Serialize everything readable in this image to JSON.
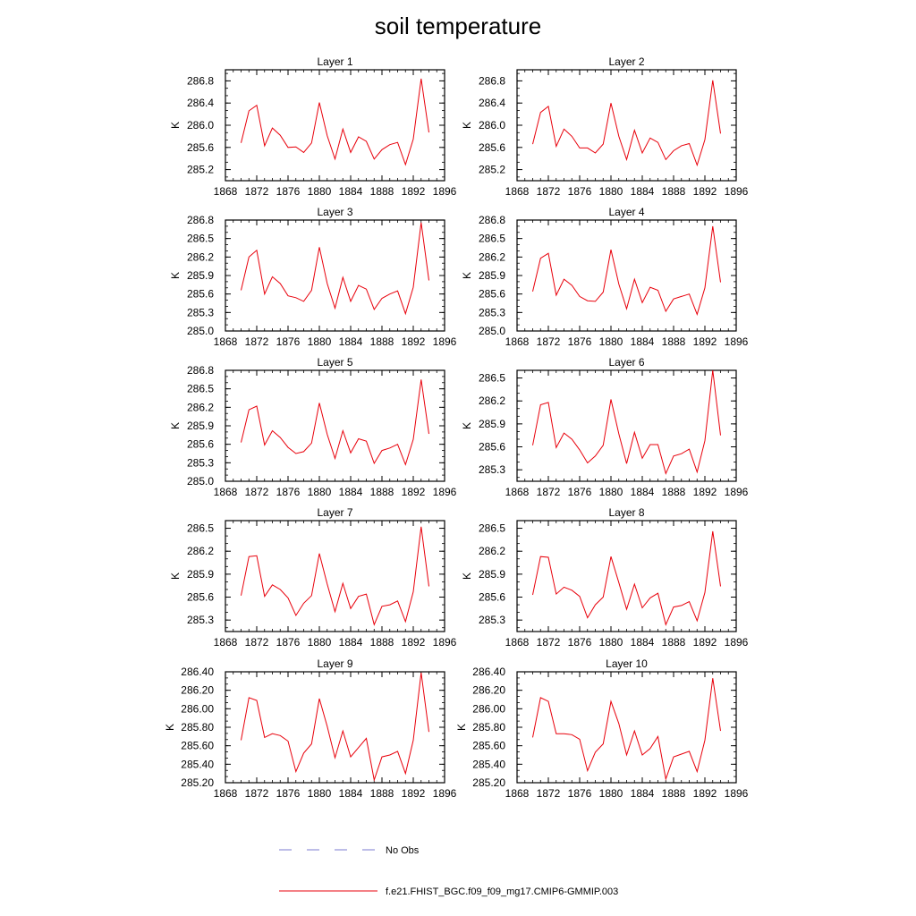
{
  "figure": {
    "title": "soil temperature"
  },
  "legend": [
    {
      "label": "No Obs",
      "color": "#7b7bd1",
      "style": "dashed"
    },
    {
      "label": "f.e21.FHIST_BGC.f09_f09_mg17.CMIP6-GMMIP.003",
      "color": "#e8000b",
      "style": "solid"
    }
  ],
  "chart_data": [
    {
      "type": "line",
      "title": "Layer 1",
      "ylabel": "K",
      "xlim": [
        1868,
        1896
      ],
      "ylim": [
        285.0,
        287.0
      ],
      "xticks": [
        "1868",
        "1872",
        "1876",
        "1880",
        "1884",
        "1888",
        "1892",
        "1896"
      ],
      "yticks": [
        "285.2",
        "285.6",
        "286.0",
        "286.4",
        "286.8"
      ],
      "series": [
        {
          "color": "#e8000b",
          "x": [
            1870,
            1871,
            1872,
            1873,
            1874,
            1875,
            1876,
            1877,
            1878,
            1879,
            1880,
            1881,
            1882,
            1883,
            1884,
            1885,
            1886,
            1887,
            1888,
            1889,
            1890,
            1891,
            1892,
            1893,
            1894
          ],
          "y": [
            285.68,
            286.26,
            286.36,
            285.63,
            285.95,
            285.82,
            285.6,
            285.61,
            285.51,
            285.68,
            286.41,
            285.81,
            285.39,
            285.93,
            285.51,
            285.79,
            285.71,
            285.39,
            285.56,
            285.65,
            285.69,
            285.29,
            285.75,
            286.84,
            285.87
          ]
        }
      ]
    },
    {
      "type": "line",
      "title": "Layer 2",
      "ylabel": "K",
      "xlim": [
        1868,
        1896
      ],
      "ylim": [
        285.0,
        287.0
      ],
      "xticks": [
        "1868",
        "1872",
        "1876",
        "1880",
        "1884",
        "1888",
        "1892",
        "1896"
      ],
      "yticks": [
        "285.2",
        "285.6",
        "286.0",
        "286.4",
        "286.8"
      ],
      "series": [
        {
          "color": "#e8000b",
          "x": [
            1870,
            1871,
            1872,
            1873,
            1874,
            1875,
            1876,
            1877,
            1878,
            1879,
            1880,
            1881,
            1882,
            1883,
            1884,
            1885,
            1886,
            1887,
            1888,
            1889,
            1890,
            1891,
            1892,
            1893,
            1894
          ],
          "y": [
            285.66,
            286.23,
            286.34,
            285.62,
            285.93,
            285.8,
            285.59,
            285.59,
            285.5,
            285.66,
            286.4,
            285.8,
            285.38,
            285.91,
            285.5,
            285.77,
            285.69,
            285.38,
            285.54,
            285.63,
            285.67,
            285.28,
            285.74,
            286.81,
            285.85
          ]
        }
      ]
    },
    {
      "type": "line",
      "title": "Layer 3",
      "ylabel": "K",
      "xlim": [
        1868,
        1896
      ],
      "ylim": [
        285.0,
        286.8
      ],
      "xticks": [
        "1868",
        "1872",
        "1876",
        "1880",
        "1884",
        "1888",
        "1892",
        "1896"
      ],
      "yticks": [
        "285.0",
        "285.3",
        "285.6",
        "285.9",
        "286.2",
        "286.5",
        "286.8"
      ],
      "series": [
        {
          "color": "#e8000b",
          "x": [
            1870,
            1871,
            1872,
            1873,
            1874,
            1875,
            1876,
            1877,
            1878,
            1879,
            1880,
            1881,
            1882,
            1883,
            1884,
            1885,
            1886,
            1887,
            1888,
            1889,
            1890,
            1891,
            1892,
            1893,
            1894
          ],
          "y": [
            285.66,
            286.2,
            286.31,
            285.6,
            285.88,
            285.77,
            285.57,
            285.54,
            285.48,
            285.66,
            286.36,
            285.77,
            285.37,
            285.87,
            285.48,
            285.74,
            285.68,
            285.35,
            285.53,
            285.6,
            285.65,
            285.28,
            285.71,
            286.76,
            285.82
          ]
        }
      ]
    },
    {
      "type": "line",
      "title": "Layer 4",
      "ylabel": "K",
      "xlim": [
        1868,
        1896
      ],
      "ylim": [
        285.0,
        286.8
      ],
      "xticks": [
        "1868",
        "1872",
        "1876",
        "1880",
        "1884",
        "1888",
        "1892",
        "1896"
      ],
      "yticks": [
        "285.0",
        "285.3",
        "285.6",
        "285.9",
        "286.2",
        "286.5",
        "286.8"
      ],
      "series": [
        {
          "color": "#e8000b",
          "x": [
            1870,
            1871,
            1872,
            1873,
            1874,
            1875,
            1876,
            1877,
            1878,
            1879,
            1880,
            1881,
            1882,
            1883,
            1884,
            1885,
            1886,
            1887,
            1888,
            1889,
            1890,
            1891,
            1892,
            1893,
            1894
          ],
          "y": [
            285.64,
            286.18,
            286.26,
            285.58,
            285.84,
            285.74,
            285.56,
            285.49,
            285.48,
            285.63,
            286.32,
            285.76,
            285.36,
            285.84,
            285.46,
            285.71,
            285.66,
            285.32,
            285.52,
            285.56,
            285.6,
            285.27,
            285.7,
            286.7,
            285.79
          ]
        }
      ]
    },
    {
      "type": "line",
      "title": "Layer 5",
      "ylabel": "K",
      "xlim": [
        1868,
        1896
      ],
      "ylim": [
        285.0,
        286.8
      ],
      "xticks": [
        "1868",
        "1872",
        "1876",
        "1880",
        "1884",
        "1888",
        "1892",
        "1896"
      ],
      "yticks": [
        "285.0",
        "285.3",
        "285.6",
        "285.9",
        "286.2",
        "286.5",
        "286.8"
      ],
      "series": [
        {
          "color": "#e8000b",
          "x": [
            1870,
            1871,
            1872,
            1873,
            1874,
            1875,
            1876,
            1877,
            1878,
            1879,
            1880,
            1881,
            1882,
            1883,
            1884,
            1885,
            1886,
            1887,
            1888,
            1889,
            1890,
            1891,
            1892,
            1893,
            1894
          ],
          "y": [
            285.63,
            286.16,
            286.22,
            285.59,
            285.82,
            285.71,
            285.55,
            285.45,
            285.48,
            285.62,
            286.27,
            285.76,
            285.37,
            285.82,
            285.46,
            285.69,
            285.65,
            285.29,
            285.5,
            285.54,
            285.6,
            285.27,
            285.68,
            286.65,
            285.77
          ]
        }
      ]
    },
    {
      "type": "line",
      "title": "Layer 6",
      "ylabel": "K",
      "xlim": [
        1868,
        1896
      ],
      "ylim": [
        285.15,
        286.6
      ],
      "xticks": [
        "1868",
        "1872",
        "1876",
        "1880",
        "1884",
        "1888",
        "1892",
        "1896"
      ],
      "yticks": [
        "285.3",
        "285.6",
        "285.9",
        "286.2",
        "286.5"
      ],
      "series": [
        {
          "color": "#e8000b",
          "x": [
            1870,
            1871,
            1872,
            1873,
            1874,
            1875,
            1876,
            1877,
            1878,
            1879,
            1880,
            1881,
            1882,
            1883,
            1884,
            1885,
            1886,
            1887,
            1888,
            1889,
            1890,
            1891,
            1892,
            1893,
            1894
          ],
          "y": [
            285.62,
            286.15,
            286.18,
            285.59,
            285.78,
            285.7,
            285.56,
            285.39,
            285.48,
            285.62,
            286.22,
            285.77,
            285.38,
            285.79,
            285.45,
            285.63,
            285.63,
            285.25,
            285.48,
            285.51,
            285.57,
            285.27,
            285.68,
            286.6,
            285.75
          ]
        }
      ]
    },
    {
      "type": "line",
      "title": "Layer 7",
      "ylabel": "K",
      "xlim": [
        1868,
        1896
      ],
      "ylim": [
        285.15,
        286.6
      ],
      "xticks": [
        "1868",
        "1872",
        "1876",
        "1880",
        "1884",
        "1888",
        "1892",
        "1896"
      ],
      "yticks": [
        "285.3",
        "285.6",
        "285.9",
        "286.2",
        "286.5"
      ],
      "series": [
        {
          "color": "#e8000b",
          "x": [
            1870,
            1871,
            1872,
            1873,
            1874,
            1875,
            1876,
            1877,
            1878,
            1879,
            1880,
            1881,
            1882,
            1883,
            1884,
            1885,
            1886,
            1887,
            1888,
            1889,
            1890,
            1891,
            1892,
            1893,
            1894
          ],
          "y": [
            285.62,
            286.13,
            286.14,
            285.61,
            285.76,
            285.7,
            285.59,
            285.36,
            285.52,
            285.62,
            286.17,
            285.77,
            285.41,
            285.78,
            285.45,
            285.61,
            285.64,
            285.24,
            285.48,
            285.5,
            285.55,
            285.28,
            285.67,
            286.52,
            285.74
          ]
        }
      ]
    },
    {
      "type": "line",
      "title": "Layer 8",
      "ylabel": "K",
      "xlim": [
        1868,
        1896
      ],
      "ylim": [
        285.15,
        286.6
      ],
      "xticks": [
        "1868",
        "1872",
        "1876",
        "1880",
        "1884",
        "1888",
        "1892",
        "1896"
      ],
      "yticks": [
        "285.3",
        "285.6",
        "285.9",
        "286.2",
        "286.5"
      ],
      "series": [
        {
          "color": "#e8000b",
          "x": [
            1870,
            1871,
            1872,
            1873,
            1874,
            1875,
            1876,
            1877,
            1878,
            1879,
            1880,
            1881,
            1882,
            1883,
            1884,
            1885,
            1886,
            1887,
            1888,
            1889,
            1890,
            1891,
            1892,
            1893,
            1894
          ],
          "y": [
            285.63,
            286.13,
            286.12,
            285.64,
            285.73,
            285.69,
            285.61,
            285.33,
            285.5,
            285.6,
            286.13,
            285.79,
            285.44,
            285.77,
            285.46,
            285.59,
            285.65,
            285.24,
            285.47,
            285.49,
            285.54,
            285.29,
            285.66,
            286.46,
            285.74
          ]
        }
      ]
    },
    {
      "type": "line",
      "title": "Layer 9",
      "ylabel": "K",
      "xlim": [
        1868,
        1896
      ],
      "ylim": [
        285.2,
        286.4
      ],
      "xticks": [
        "1868",
        "1872",
        "1876",
        "1880",
        "1884",
        "1888",
        "1892",
        "1896"
      ],
      "yticks": [
        "285.20",
        "285.40",
        "285.60",
        "285.80",
        "286.00",
        "286.20",
        "286.40"
      ],
      "series": [
        {
          "color": "#e8000b",
          "x": [
            1870,
            1871,
            1872,
            1873,
            1874,
            1875,
            1876,
            1877,
            1878,
            1879,
            1880,
            1881,
            1882,
            1883,
            1884,
            1885,
            1886,
            1887,
            1888,
            1889,
            1890,
            1891,
            1892,
            1893,
            1894
          ],
          "y": [
            285.66,
            286.12,
            286.09,
            285.69,
            285.73,
            285.71,
            285.65,
            285.32,
            285.52,
            285.62,
            286.11,
            285.81,
            285.47,
            285.76,
            285.48,
            285.58,
            285.68,
            285.23,
            285.48,
            285.5,
            285.54,
            285.3,
            285.66,
            286.39,
            285.75
          ]
        }
      ]
    },
    {
      "type": "line",
      "title": "Layer 10",
      "ylabel": "K",
      "xlim": [
        1868,
        1896
      ],
      "ylim": [
        285.2,
        286.4
      ],
      "xticks": [
        "1868",
        "1872",
        "1876",
        "1880",
        "1884",
        "1888",
        "1892",
        "1896"
      ],
      "yticks": [
        "285.20",
        "285.40",
        "285.60",
        "285.80",
        "286.00",
        "286.20",
        "286.40"
      ],
      "series": [
        {
          "color": "#e8000b",
          "x": [
            1870,
            1871,
            1872,
            1873,
            1874,
            1875,
            1876,
            1877,
            1878,
            1879,
            1880,
            1881,
            1882,
            1883,
            1884,
            1885,
            1886,
            1887,
            1888,
            1889,
            1890,
            1891,
            1892,
            1893,
            1894
          ],
          "y": [
            285.69,
            286.12,
            286.08,
            285.73,
            285.73,
            285.72,
            285.67,
            285.33,
            285.53,
            285.62,
            286.08,
            285.84,
            285.5,
            285.76,
            285.5,
            285.57,
            285.7,
            285.24,
            285.48,
            285.51,
            285.54,
            285.32,
            285.66,
            286.33,
            285.76
          ]
        }
      ]
    }
  ]
}
